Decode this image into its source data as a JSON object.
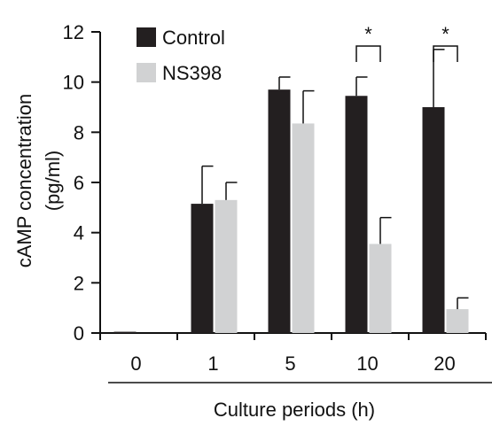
{
  "chart_data": {
    "type": "bar",
    "categories": [
      "0",
      "1",
      "5",
      "10",
      "20"
    ],
    "series": [
      {
        "name": "Control",
        "values": [
          0.05,
          5.15,
          9.7,
          9.45,
          9.0
        ],
        "errors": [
          0,
          1.5,
          0.5,
          0.75,
          2.3
        ]
      },
      {
        "name": "NS398",
        "values": [
          0,
          5.3,
          8.35,
          3.55,
          0.95
        ],
        "errors": [
          0,
          0.7,
          1.3,
          1.05,
          0.45
        ]
      }
    ],
    "ylabel_line1": "cAMP concentration",
    "ylabel_line2": "(pg/ml)",
    "xlabel": "Culture periods (h)",
    "ylim": [
      0,
      12
    ],
    "yticks": [
      "0",
      "2",
      "4",
      "6",
      "8",
      "10",
      "12"
    ],
    "significance": [
      {
        "category": "10",
        "label": "*"
      },
      {
        "category": "20",
        "label": "*"
      }
    ],
    "legend_position": "top-left",
    "colors": {
      "Control": "#231f20",
      "NS398": "#d1d2d3"
    },
    "grid": false
  }
}
